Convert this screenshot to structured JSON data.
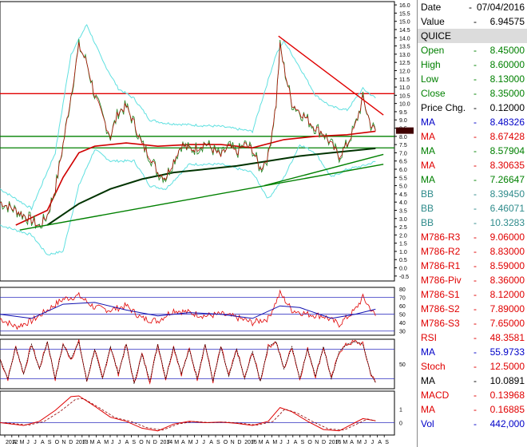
{
  "chart_data": {
    "type": "line",
    "x_labels": [
      "2012",
      "A",
      "M",
      "J",
      "J",
      "A",
      "S",
      "O",
      "N",
      "D",
      "2013",
      "F",
      "M",
      "A",
      "M",
      "J",
      "J",
      "A",
      "S",
      "O",
      "N",
      "D",
      "2014",
      "F",
      "M",
      "A",
      "M",
      "J",
      "J",
      "A",
      "S",
      "O",
      "N",
      "D",
      "2015",
      "F",
      "M",
      "A",
      "M",
      "J",
      "J",
      "A",
      "S",
      "O",
      "N",
      "D",
      "2016",
      "F",
      "M",
      "A",
      "M",
      "J",
      "J",
      "A",
      "S"
    ],
    "price_axis": {
      "ticks": [
        "16.0",
        "15.5",
        "15.0",
        "14.5",
        "14.0",
        "13.5",
        "13.0",
        "12.5",
        "12.0",
        "11.5",
        "11.0",
        "10.5",
        "10.0",
        "9.5",
        "9.0",
        "8.5",
        "8.0",
        "7.5",
        "7.0",
        "6.5",
        "6.0",
        "5.5",
        "5.0",
        "4.5",
        "4.0",
        "3.5",
        "3.0",
        "2.5",
        "2.0",
        "1.5",
        "1.0",
        "0.5",
        "0.0",
        "-0.5"
      ],
      "ylim": [
        -0.8,
        16.2
      ]
    },
    "rsi_axis": {
      "ticks": [
        "80",
        "70",
        "60",
        "50",
        "40",
        "30"
      ]
    },
    "stoch_axis": {
      "ticks": [
        "50"
      ]
    },
    "macd_axis": {
      "ticks": [
        "1",
        "0"
      ]
    },
    "current_price_tag": "",
    "horizontal_levels": [
      {
        "name": "resistance",
        "value": 10.6,
        "color": "#e00000"
      },
      {
        "name": "support-1",
        "value": 8.0,
        "color": "#008000"
      },
      {
        "name": "support-2",
        "value": 7.3,
        "color": "#008000"
      }
    ],
    "price_series": [
      {
        "t": 0,
        "v": 4.0
      },
      {
        "t": 2,
        "v": 3.5
      },
      {
        "t": 4,
        "v": 2.9
      },
      {
        "t": 5,
        "v": 2.5
      },
      {
        "t": 6,
        "v": 3.2
      },
      {
        "t": 7,
        "v": 4.8
      },
      {
        "t": 8,
        "v": 7.5
      },
      {
        "t": 9,
        "v": 10.5
      },
      {
        "t": 10,
        "v": 13.5
      },
      {
        "t": 11,
        "v": 12.5
      },
      {
        "t": 12,
        "v": 10.5
      },
      {
        "t": 13,
        "v": 9.2
      },
      {
        "t": 14,
        "v": 8.0
      },
      {
        "t": 15,
        "v": 9.5
      },
      {
        "t": 16,
        "v": 9.8
      },
      {
        "t": 17,
        "v": 8.8
      },
      {
        "t": 18,
        "v": 7.5
      },
      {
        "t": 19,
        "v": 6.8
      },
      {
        "t": 20,
        "v": 5.8
      },
      {
        "t": 21,
        "v": 5.5
      },
      {
        "t": 22,
        "v": 6.5
      },
      {
        "t": 23,
        "v": 7.5
      },
      {
        "t": 24,
        "v": 7.2
      },
      {
        "t": 25,
        "v": 7.3
      },
      {
        "t": 26,
        "v": 7.6
      },
      {
        "t": 27,
        "v": 7.2
      },
      {
        "t": 28,
        "v": 6.8
      },
      {
        "t": 29,
        "v": 7.4
      },
      {
        "t": 30,
        "v": 7.0
      },
      {
        "t": 31,
        "v": 7.5
      },
      {
        "t": 32,
        "v": 7.2
      },
      {
        "t": 33,
        "v": 6.0
      },
      {
        "t": 34,
        "v": 6.8
      },
      {
        "t": 35,
        "v": 10.0
      },
      {
        "t": 35.5,
        "v": 13.5
      },
      {
        "t": 36,
        "v": 12.2
      },
      {
        "t": 37,
        "v": 10.0
      },
      {
        "t": 38,
        "v": 9.5
      },
      {
        "t": 39,
        "v": 9.0
      },
      {
        "t": 40,
        "v": 8.5
      },
      {
        "t": 41,
        "v": 8.2
      },
      {
        "t": 42,
        "v": 7.5
      },
      {
        "t": 43,
        "v": 6.8
      },
      {
        "t": 44,
        "v": 7.5
      },
      {
        "t": 45,
        "v": 8.6
      },
      {
        "t": 46,
        "v": 10.3
      },
      {
        "t": 47,
        "v": 8.7
      },
      {
        "t": 47.6,
        "v": 8.35
      }
    ],
    "ma_slow_series": [
      {
        "t": 6,
        "v": 2.6
      },
      {
        "t": 10,
        "v": 3.9
      },
      {
        "t": 14,
        "v": 4.8
      },
      {
        "t": 18,
        "v": 5.4
      },
      {
        "t": 22,
        "v": 5.8
      },
      {
        "t": 26,
        "v": 6.0
      },
      {
        "t": 30,
        "v": 6.2
      },
      {
        "t": 34,
        "v": 6.5
      },
      {
        "t": 38,
        "v": 6.8
      },
      {
        "t": 42,
        "v": 7.0
      },
      {
        "t": 47.6,
        "v": 7.27
      }
    ],
    "ma_mid_series": [
      {
        "t": 2,
        "v": 2.6
      },
      {
        "t": 6,
        "v": 3.5
      },
      {
        "t": 8,
        "v": 5.5
      },
      {
        "t": 10,
        "v": 7.0
      },
      {
        "t": 12,
        "v": 7.4
      },
      {
        "t": 16,
        "v": 7.6
      },
      {
        "t": 20,
        "v": 7.4
      },
      {
        "t": 24,
        "v": 7.5
      },
      {
        "t": 28,
        "v": 7.5
      },
      {
        "t": 32,
        "v": 7.3
      },
      {
        "t": 36,
        "v": 7.8
      },
      {
        "t": 40,
        "v": 8.0
      },
      {
        "t": 44,
        "v": 8.1
      },
      {
        "t": 47.6,
        "v": 8.31
      }
    ],
    "bb_upper_series": [
      {
        "t": 0,
        "v": 4.8
      },
      {
        "t": 4,
        "v": 3.6
      },
      {
        "t": 7,
        "v": 7.0
      },
      {
        "t": 9,
        "v": 13.0
      },
      {
        "t": 11,
        "v": 14.8
      },
      {
        "t": 13,
        "v": 12.6
      },
      {
        "t": 15,
        "v": 10.9
      },
      {
        "t": 17,
        "v": 10.3
      },
      {
        "t": 19,
        "v": 9.0
      },
      {
        "t": 21,
        "v": 8.8
      },
      {
        "t": 24,
        "v": 8.7
      },
      {
        "t": 28,
        "v": 8.6
      },
      {
        "t": 32,
        "v": 8.3
      },
      {
        "t": 35,
        "v": 13.0
      },
      {
        "t": 36,
        "v": 13.8
      },
      {
        "t": 38,
        "v": 12.2
      },
      {
        "t": 40,
        "v": 10.5
      },
      {
        "t": 42,
        "v": 9.8
      },
      {
        "t": 44,
        "v": 9.6
      },
      {
        "t": 46,
        "v": 10.9
      },
      {
        "t": 47.6,
        "v": 10.33
      }
    ],
    "bb_lower_series": [
      {
        "t": 0,
        "v": 2.6
      },
      {
        "t": 4,
        "v": 2.0
      },
      {
        "t": 6,
        "v": 0.8
      },
      {
        "t": 8,
        "v": 1.0
      },
      {
        "t": 10,
        "v": 5.0
      },
      {
        "t": 12,
        "v": 7.2
      },
      {
        "t": 14,
        "v": 6.5
      },
      {
        "t": 17,
        "v": 6.5
      },
      {
        "t": 19,
        "v": 5.0
      },
      {
        "t": 21,
        "v": 4.8
      },
      {
        "t": 24,
        "v": 6.3
      },
      {
        "t": 28,
        "v": 6.3
      },
      {
        "t": 32,
        "v": 5.8
      },
      {
        "t": 34,
        "v": 4.2
      },
      {
        "t": 36,
        "v": 5.5
      },
      {
        "t": 38,
        "v": 7.5
      },
      {
        "t": 40,
        "v": 7.0
      },
      {
        "t": 42,
        "v": 5.5
      },
      {
        "t": 44,
        "v": 6.0
      },
      {
        "t": 46,
        "v": 6.2
      },
      {
        "t": 47.6,
        "v": 6.46
      }
    ],
    "trendlines": [
      {
        "name": "trend-down",
        "color": "#e00000",
        "from": {
          "t": 35.3,
          "v": 14.1
        },
        "to": {
          "t": 48.6,
          "v": 9.3
        }
      },
      {
        "name": "trend-up-1",
        "color": "#008000",
        "from": {
          "t": 2.5,
          "v": 2.3
        },
        "to": {
          "t": 48.6,
          "v": 6.3
        }
      },
      {
        "name": "trend-up-2",
        "color": "#008000",
        "from": {
          "t": 33.5,
          "v": 5.0
        },
        "to": {
          "t": 48.6,
          "v": 6.9
        }
      }
    ],
    "rsi_series": [
      {
        "t": 0,
        "v": 45
      },
      {
        "t": 2,
        "v": 35
      },
      {
        "t": 4,
        "v": 42
      },
      {
        "t": 6,
        "v": 55
      },
      {
        "t": 8,
        "v": 68
      },
      {
        "t": 10,
        "v": 72
      },
      {
        "t": 12,
        "v": 58
      },
      {
        "t": 14,
        "v": 55
      },
      {
        "t": 16,
        "v": 60
      },
      {
        "t": 18,
        "v": 45
      },
      {
        "t": 20,
        "v": 42
      },
      {
        "t": 22,
        "v": 55
      },
      {
        "t": 24,
        "v": 52
      },
      {
        "t": 26,
        "v": 48
      },
      {
        "t": 28,
        "v": 50
      },
      {
        "t": 30,
        "v": 46
      },
      {
        "t": 32,
        "v": 40
      },
      {
        "t": 34,
        "v": 45
      },
      {
        "t": 35.5,
        "v": 75
      },
      {
        "t": 37,
        "v": 55
      },
      {
        "t": 39,
        "v": 50
      },
      {
        "t": 41,
        "v": 48
      },
      {
        "t": 43,
        "v": 38
      },
      {
        "t": 45,
        "v": 55
      },
      {
        "t": 46,
        "v": 70
      },
      {
        "t": 47.6,
        "v": 48
      }
    ],
    "rsi_ma_series": [
      {
        "t": 0,
        "v": 50
      },
      {
        "t": 4,
        "v": 45
      },
      {
        "t": 8,
        "v": 62
      },
      {
        "t": 12,
        "v": 64
      },
      {
        "t": 16,
        "v": 55
      },
      {
        "t": 20,
        "v": 48
      },
      {
        "t": 24,
        "v": 52
      },
      {
        "t": 28,
        "v": 50
      },
      {
        "t": 32,
        "v": 45
      },
      {
        "t": 35.5,
        "v": 60
      },
      {
        "t": 38,
        "v": 58
      },
      {
        "t": 42,
        "v": 45
      },
      {
        "t": 45,
        "v": 50
      },
      {
        "t": 47.6,
        "v": 56
      }
    ],
    "stoch_series": [
      {
        "t": 0,
        "v": 60
      },
      {
        "t": 1,
        "v": 20
      },
      {
        "t": 2,
        "v": 85
      },
      {
        "t": 3,
        "v": 30
      },
      {
        "t": 4,
        "v": 90
      },
      {
        "t": 5,
        "v": 40
      },
      {
        "t": 6,
        "v": 95
      },
      {
        "t": 7,
        "v": 20
      },
      {
        "t": 8,
        "v": 90
      },
      {
        "t": 9,
        "v": 60
      },
      {
        "t": 10,
        "v": 95
      },
      {
        "t": 11,
        "v": 15
      },
      {
        "t": 12,
        "v": 80
      },
      {
        "t": 13,
        "v": 20
      },
      {
        "t": 14,
        "v": 85
      },
      {
        "t": 15,
        "v": 30
      },
      {
        "t": 16,
        "v": 90
      },
      {
        "t": 17,
        "v": 10
      },
      {
        "t": 18,
        "v": 70
      },
      {
        "t": 19,
        "v": 15
      },
      {
        "t": 20,
        "v": 90
      },
      {
        "t": 21,
        "v": 20
      },
      {
        "t": 22,
        "v": 85
      },
      {
        "t": 23,
        "v": 30
      },
      {
        "t": 24,
        "v": 80
      },
      {
        "t": 25,
        "v": 20
      },
      {
        "t": 26,
        "v": 90
      },
      {
        "t": 27,
        "v": 15
      },
      {
        "t": 28,
        "v": 85
      },
      {
        "t": 29,
        "v": 25
      },
      {
        "t": 30,
        "v": 80
      },
      {
        "t": 31,
        "v": 20
      },
      {
        "t": 32,
        "v": 75
      },
      {
        "t": 33,
        "v": 15
      },
      {
        "t": 34,
        "v": 85
      },
      {
        "t": 35,
        "v": 95
      },
      {
        "t": 36,
        "v": 40
      },
      {
        "t": 37,
        "v": 85
      },
      {
        "t": 38,
        "v": 20
      },
      {
        "t": 39,
        "v": 80
      },
      {
        "t": 40,
        "v": 25
      },
      {
        "t": 41,
        "v": 85
      },
      {
        "t": 42,
        "v": 20
      },
      {
        "t": 43,
        "v": 75
      },
      {
        "t": 44,
        "v": 90
      },
      {
        "t": 45,
        "v": 95
      },
      {
        "t": 46,
        "v": 90
      },
      {
        "t": 47,
        "v": 30
      },
      {
        "t": 47.6,
        "v": 12.5
      }
    ],
    "macd_series": [
      {
        "t": 0,
        "v": 0.0
      },
      {
        "t": 3,
        "v": -0.2
      },
      {
        "t": 5,
        "v": 0.1
      },
      {
        "t": 7,
        "v": 0.9
      },
      {
        "t": 9,
        "v": 1.9
      },
      {
        "t": 10,
        "v": 1.95
      },
      {
        "t": 12,
        "v": 1.2
      },
      {
        "t": 14,
        "v": 0.4
      },
      {
        "t": 16,
        "v": 0.1
      },
      {
        "t": 18,
        "v": -0.4
      },
      {
        "t": 20,
        "v": -0.6
      },
      {
        "t": 22,
        "v": -0.1
      },
      {
        "t": 24,
        "v": 0.1
      },
      {
        "t": 26,
        "v": 0.0
      },
      {
        "t": 28,
        "v": 0.05
      },
      {
        "t": 30,
        "v": -0.05
      },
      {
        "t": 32,
        "v": -0.2
      },
      {
        "t": 34,
        "v": 0.1
      },
      {
        "t": 35.5,
        "v": 1.1
      },
      {
        "t": 37,
        "v": 0.8
      },
      {
        "t": 39,
        "v": 0.1
      },
      {
        "t": 41,
        "v": -0.5
      },
      {
        "t": 43,
        "v": -0.6
      },
      {
        "t": 45,
        "v": 0.0
      },
      {
        "t": 46,
        "v": 0.3
      },
      {
        "t": 47.6,
        "v": 0.14
      }
    ]
  },
  "panel": {
    "date": {
      "label": "Date",
      "value": "07/04/2016",
      "color": "#000000"
    },
    "value": {
      "label": "Value",
      "value": "6.94575",
      "color": "#000000"
    },
    "symbol": {
      "label": "QUICE",
      "color": "#000000"
    },
    "rows": [
      {
        "label": "Open",
        "value": "8.45000",
        "color": "#008000"
      },
      {
        "label": "High",
        "value": "8.60000",
        "color": "#008000"
      },
      {
        "label": "Low",
        "value": "8.13000",
        "color": "#008000"
      },
      {
        "label": "Close",
        "value": "8.35000",
        "color": "#008000"
      },
      {
        "label": "Price Chg.",
        "value": "0.12000",
        "color": "#000000"
      },
      {
        "label": "MA",
        "value": "8.48326",
        "color": "#0000c8"
      },
      {
        "label": "MA",
        "value": "8.67428",
        "color": "#e00000"
      },
      {
        "label": "MA",
        "value": "8.57904",
        "color": "#008000"
      },
      {
        "label": "MA",
        "value": "8.30635",
        "color": "#e00000"
      },
      {
        "label": "MA",
        "value": "7.26647",
        "color": "#008000"
      },
      {
        "label": "BB",
        "value": "8.39450",
        "color": "#2e8b8b"
      },
      {
        "label": "BB",
        "value": "6.46071",
        "color": "#2e8b8b"
      },
      {
        "label": "BB",
        "value": "10.3283",
        "color": "#2e8b8b"
      },
      {
        "label": "M786-R3",
        "value": "9.06000",
        "color": "#e00000"
      },
      {
        "label": "M786-R2",
        "value": "8.83000",
        "color": "#e00000"
      },
      {
        "label": "M786-R1",
        "value": "8.59000",
        "color": "#e00000"
      },
      {
        "label": "M786-Piv",
        "value": "8.36000",
        "color": "#e00000"
      },
      {
        "label": "M786-S1",
        "value": "8.12000",
        "color": "#e00000"
      },
      {
        "label": "M786-S2",
        "value": "7.89000",
        "color": "#e00000"
      },
      {
        "label": "M786-S3",
        "value": "7.65000",
        "color": "#e00000"
      },
      {
        "label": "RSI",
        "value": "48.3581",
        "color": "#e00000"
      },
      {
        "label": "MA",
        "value": "55.9733",
        "color": "#0000c8"
      },
      {
        "label": "Stoch",
        "value": "12.5000",
        "color": "#e00000"
      },
      {
        "label": "MA",
        "value": "10.0891",
        "color": "#000000"
      },
      {
        "label": "MACD",
        "value": "0.13968",
        "color": "#e00000"
      },
      {
        "label": "MA",
        "value": "0.16885",
        "color": "#e00000"
      },
      {
        "label": "Vol",
        "value": "442,000",
        "color": "#0000c8"
      }
    ]
  }
}
